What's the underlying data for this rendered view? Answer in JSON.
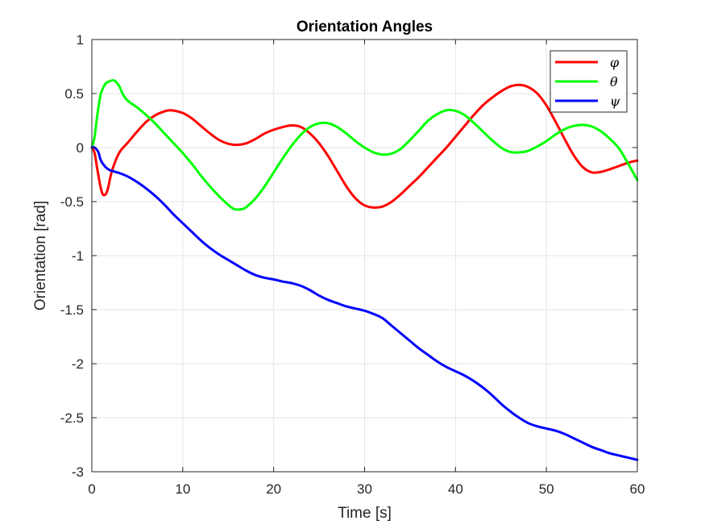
{
  "chart_data": {
    "type": "line",
    "title": "Orientation Angles",
    "xlabel": "Time [s]",
    "ylabel": "Orientation [rad]",
    "xlim": [
      0,
      60
    ],
    "ylim": [
      -3,
      1
    ],
    "xticks": [
      0,
      10,
      20,
      30,
      40,
      50,
      60
    ],
    "xtick_labels": [
      "0",
      "10",
      "20",
      "30",
      "40",
      "50",
      "60"
    ],
    "yticks": [
      -3,
      -2.5,
      -2,
      -1.5,
      -1,
      -0.5,
      0,
      0.5,
      1
    ],
    "ytick_labels": [
      "-3",
      "-2.5",
      "-2",
      "-1.5",
      "-1",
      "-0.5",
      "0",
      "0.5",
      "1"
    ],
    "grid": true,
    "legend_position": "top-right",
    "series": [
      {
        "name": "φ",
        "color": "#ff0000",
        "x": [
          0,
          0.3,
          0.6,
          1.0,
          1.3,
          1.7,
          2.2,
          3.0,
          4.0,
          5.0,
          6.0,
          7.0,
          8.0,
          8.7,
          10,
          11,
          12,
          13,
          14,
          15,
          16,
          17,
          18,
          19,
          20,
          21,
          22,
          23,
          24,
          25,
          26,
          27,
          28,
          29,
          30,
          31,
          32,
          33,
          34,
          35,
          36,
          37,
          38,
          39,
          40,
          41,
          42,
          43,
          44,
          45,
          46,
          47,
          48,
          49,
          50,
          51,
          52,
          53,
          54,
          55,
          56,
          57,
          58,
          59,
          60
        ],
        "y": [
          0,
          -0.05,
          -0.2,
          -0.38,
          -0.44,
          -0.4,
          -0.22,
          -0.05,
          0.05,
          0.15,
          0.24,
          0.3,
          0.335,
          0.345,
          0.32,
          0.27,
          0.2,
          0.13,
          0.07,
          0.035,
          0.025,
          0.04,
          0.08,
          0.13,
          0.165,
          0.19,
          0.205,
          0.19,
          0.13,
          0.04,
          -0.08,
          -0.22,
          -0.36,
          -0.47,
          -0.535,
          -0.555,
          -0.545,
          -0.5,
          -0.43,
          -0.35,
          -0.27,
          -0.18,
          -0.09,
          0.0,
          0.1,
          0.2,
          0.3,
          0.39,
          0.46,
          0.52,
          0.565,
          0.58,
          0.56,
          0.5,
          0.39,
          0.24,
          0.08,
          -0.07,
          -0.18,
          -0.23,
          -0.225,
          -0.2,
          -0.17,
          -0.14,
          -0.12
        ]
      },
      {
        "name": "θ",
        "color": "#00ff00",
        "x": [
          0,
          0.3,
          0.6,
          1.0,
          1.5,
          2.0,
          2.5,
          3.0,
          3.5,
          4.0,
          5.0,
          6.0,
          7.0,
          8.0,
          9.0,
          10,
          11,
          12,
          13,
          14,
          15,
          15.7,
          16.5,
          17,
          18,
          19,
          20,
          21,
          22,
          23,
          24,
          25,
          26,
          27,
          28,
          29,
          30,
          31,
          32,
          33,
          34,
          35,
          36,
          37,
          38,
          39,
          40,
          41,
          42,
          43,
          44,
          45,
          46,
          47,
          48,
          49,
          50,
          51,
          52,
          53,
          54,
          55,
          56,
          57,
          58,
          59,
          60
        ],
        "y": [
          0,
          0.1,
          0.3,
          0.5,
          0.59,
          0.615,
          0.62,
          0.57,
          0.48,
          0.43,
          0.37,
          0.3,
          0.22,
          0.13,
          0.04,
          -0.05,
          -0.15,
          -0.26,
          -0.36,
          -0.45,
          -0.53,
          -0.57,
          -0.57,
          -0.55,
          -0.47,
          -0.36,
          -0.23,
          -0.1,
          0.02,
          0.12,
          0.19,
          0.225,
          0.225,
          0.19,
          0.13,
          0.06,
          0.0,
          -0.045,
          -0.065,
          -0.055,
          -0.01,
          0.07,
          0.16,
          0.25,
          0.31,
          0.345,
          0.34,
          0.3,
          0.23,
          0.15,
          0.07,
          0.0,
          -0.04,
          -0.045,
          -0.03,
          0.01,
          0.06,
          0.12,
          0.17,
          0.2,
          0.21,
          0.195,
          0.15,
          0.08,
          -0.01,
          -0.15,
          -0.3
        ]
      },
      {
        "name": "ψ",
        "color": "#0000ff",
        "x": [
          0,
          0.3,
          0.7,
          1.0,
          1.5,
          2.0,
          3.0,
          4.0,
          5.0,
          6.0,
          7.0,
          8.0,
          9.0,
          10,
          11,
          12,
          13,
          14,
          15,
          16,
          17,
          18,
          19,
          20,
          21,
          22,
          23,
          24,
          25,
          26,
          27,
          28,
          29,
          30,
          31,
          32,
          33,
          34,
          35,
          36,
          37,
          38,
          39,
          40,
          41,
          42,
          43,
          44,
          45,
          46,
          47,
          48,
          49,
          50,
          51,
          52,
          53,
          54,
          55,
          56,
          57,
          58,
          59,
          60
        ],
        "y": [
          0,
          0.0,
          -0.04,
          -0.12,
          -0.18,
          -0.21,
          -0.235,
          -0.27,
          -0.32,
          -0.38,
          -0.45,
          -0.53,
          -0.62,
          -0.7,
          -0.78,
          -0.86,
          -0.93,
          -0.99,
          -1.04,
          -1.09,
          -1.14,
          -1.18,
          -1.205,
          -1.22,
          -1.24,
          -1.255,
          -1.28,
          -1.32,
          -1.37,
          -1.41,
          -1.44,
          -1.47,
          -1.49,
          -1.51,
          -1.54,
          -1.58,
          -1.65,
          -1.72,
          -1.79,
          -1.86,
          -1.92,
          -1.98,
          -2.03,
          -2.07,
          -2.11,
          -2.16,
          -2.22,
          -2.29,
          -2.37,
          -2.44,
          -2.5,
          -2.55,
          -2.58,
          -2.6,
          -2.62,
          -2.65,
          -2.69,
          -2.73,
          -2.77,
          -2.8,
          -2.83,
          -2.85,
          -2.87,
          -2.89
        ]
      }
    ]
  }
}
